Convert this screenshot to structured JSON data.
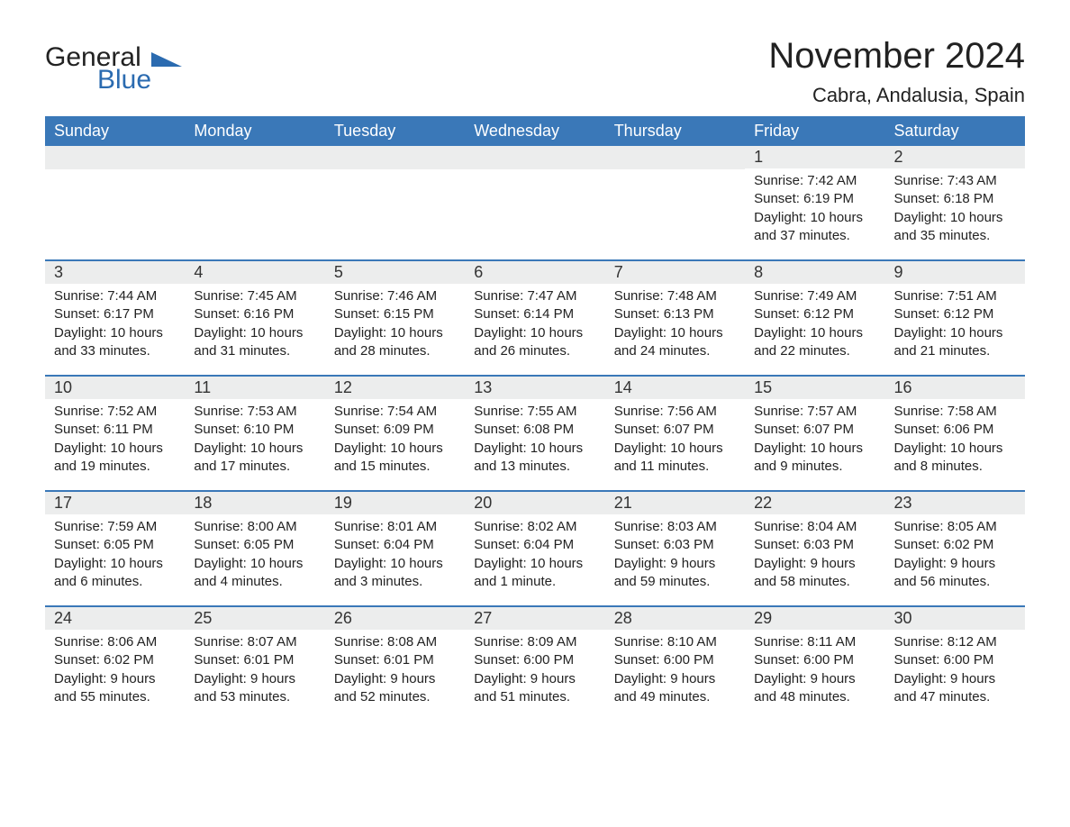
{
  "brand": {
    "general": "General",
    "blue": "Blue"
  },
  "title": "November 2024",
  "location": "Cabra, Andalusia, Spain",
  "colors": {
    "header_bg": "#3a78b8",
    "header_text": "#ffffff",
    "daynum_bg": "#eceded",
    "brand_blue": "#2b6bb0",
    "text": "#222222",
    "page_bg": "#ffffff"
  },
  "weekdays": [
    "Sunday",
    "Monday",
    "Tuesday",
    "Wednesday",
    "Thursday",
    "Friday",
    "Saturday"
  ],
  "weeks": [
    [
      {
        "empty": true
      },
      {
        "empty": true
      },
      {
        "empty": true
      },
      {
        "empty": true
      },
      {
        "empty": true
      },
      {
        "num": "1",
        "sunrise": "Sunrise: 7:42 AM",
        "sunset": "Sunset: 6:19 PM",
        "daylight": "Daylight: 10 hours and 37 minutes."
      },
      {
        "num": "2",
        "sunrise": "Sunrise: 7:43 AM",
        "sunset": "Sunset: 6:18 PM",
        "daylight": "Daylight: 10 hours and 35 minutes."
      }
    ],
    [
      {
        "num": "3",
        "sunrise": "Sunrise: 7:44 AM",
        "sunset": "Sunset: 6:17 PM",
        "daylight": "Daylight: 10 hours and 33 minutes."
      },
      {
        "num": "4",
        "sunrise": "Sunrise: 7:45 AM",
        "sunset": "Sunset: 6:16 PM",
        "daylight": "Daylight: 10 hours and 31 minutes."
      },
      {
        "num": "5",
        "sunrise": "Sunrise: 7:46 AM",
        "sunset": "Sunset: 6:15 PM",
        "daylight": "Daylight: 10 hours and 28 minutes."
      },
      {
        "num": "6",
        "sunrise": "Sunrise: 7:47 AM",
        "sunset": "Sunset: 6:14 PM",
        "daylight": "Daylight: 10 hours and 26 minutes."
      },
      {
        "num": "7",
        "sunrise": "Sunrise: 7:48 AM",
        "sunset": "Sunset: 6:13 PM",
        "daylight": "Daylight: 10 hours and 24 minutes."
      },
      {
        "num": "8",
        "sunrise": "Sunrise: 7:49 AM",
        "sunset": "Sunset: 6:12 PM",
        "daylight": "Daylight: 10 hours and 22 minutes."
      },
      {
        "num": "9",
        "sunrise": "Sunrise: 7:51 AM",
        "sunset": "Sunset: 6:12 PM",
        "daylight": "Daylight: 10 hours and 21 minutes."
      }
    ],
    [
      {
        "num": "10",
        "sunrise": "Sunrise: 7:52 AM",
        "sunset": "Sunset: 6:11 PM",
        "daylight": "Daylight: 10 hours and 19 minutes."
      },
      {
        "num": "11",
        "sunrise": "Sunrise: 7:53 AM",
        "sunset": "Sunset: 6:10 PM",
        "daylight": "Daylight: 10 hours and 17 minutes."
      },
      {
        "num": "12",
        "sunrise": "Sunrise: 7:54 AM",
        "sunset": "Sunset: 6:09 PM",
        "daylight": "Daylight: 10 hours and 15 minutes."
      },
      {
        "num": "13",
        "sunrise": "Sunrise: 7:55 AM",
        "sunset": "Sunset: 6:08 PM",
        "daylight": "Daylight: 10 hours and 13 minutes."
      },
      {
        "num": "14",
        "sunrise": "Sunrise: 7:56 AM",
        "sunset": "Sunset: 6:07 PM",
        "daylight": "Daylight: 10 hours and 11 minutes."
      },
      {
        "num": "15",
        "sunrise": "Sunrise: 7:57 AM",
        "sunset": "Sunset: 6:07 PM",
        "daylight": "Daylight: 10 hours and 9 minutes."
      },
      {
        "num": "16",
        "sunrise": "Sunrise: 7:58 AM",
        "sunset": "Sunset: 6:06 PM",
        "daylight": "Daylight: 10 hours and 8 minutes."
      }
    ],
    [
      {
        "num": "17",
        "sunrise": "Sunrise: 7:59 AM",
        "sunset": "Sunset: 6:05 PM",
        "daylight": "Daylight: 10 hours and 6 minutes."
      },
      {
        "num": "18",
        "sunrise": "Sunrise: 8:00 AM",
        "sunset": "Sunset: 6:05 PM",
        "daylight": "Daylight: 10 hours and 4 minutes."
      },
      {
        "num": "19",
        "sunrise": "Sunrise: 8:01 AM",
        "sunset": "Sunset: 6:04 PM",
        "daylight": "Daylight: 10 hours and 3 minutes."
      },
      {
        "num": "20",
        "sunrise": "Sunrise: 8:02 AM",
        "sunset": "Sunset: 6:04 PM",
        "daylight": "Daylight: 10 hours and 1 minute."
      },
      {
        "num": "21",
        "sunrise": "Sunrise: 8:03 AM",
        "sunset": "Sunset: 6:03 PM",
        "daylight": "Daylight: 9 hours and 59 minutes."
      },
      {
        "num": "22",
        "sunrise": "Sunrise: 8:04 AM",
        "sunset": "Sunset: 6:03 PM",
        "daylight": "Daylight: 9 hours and 58 minutes."
      },
      {
        "num": "23",
        "sunrise": "Sunrise: 8:05 AM",
        "sunset": "Sunset: 6:02 PM",
        "daylight": "Daylight: 9 hours and 56 minutes."
      }
    ],
    [
      {
        "num": "24",
        "sunrise": "Sunrise: 8:06 AM",
        "sunset": "Sunset: 6:02 PM",
        "daylight": "Daylight: 9 hours and 55 minutes."
      },
      {
        "num": "25",
        "sunrise": "Sunrise: 8:07 AM",
        "sunset": "Sunset: 6:01 PM",
        "daylight": "Daylight: 9 hours and 53 minutes."
      },
      {
        "num": "26",
        "sunrise": "Sunrise: 8:08 AM",
        "sunset": "Sunset: 6:01 PM",
        "daylight": "Daylight: 9 hours and 52 minutes."
      },
      {
        "num": "27",
        "sunrise": "Sunrise: 8:09 AM",
        "sunset": "Sunset: 6:00 PM",
        "daylight": "Daylight: 9 hours and 51 minutes."
      },
      {
        "num": "28",
        "sunrise": "Sunrise: 8:10 AM",
        "sunset": "Sunset: 6:00 PM",
        "daylight": "Daylight: 9 hours and 49 minutes."
      },
      {
        "num": "29",
        "sunrise": "Sunrise: 8:11 AM",
        "sunset": "Sunset: 6:00 PM",
        "daylight": "Daylight: 9 hours and 48 minutes."
      },
      {
        "num": "30",
        "sunrise": "Sunrise: 8:12 AM",
        "sunset": "Sunset: 6:00 PM",
        "daylight": "Daylight: 9 hours and 47 minutes."
      }
    ]
  ]
}
